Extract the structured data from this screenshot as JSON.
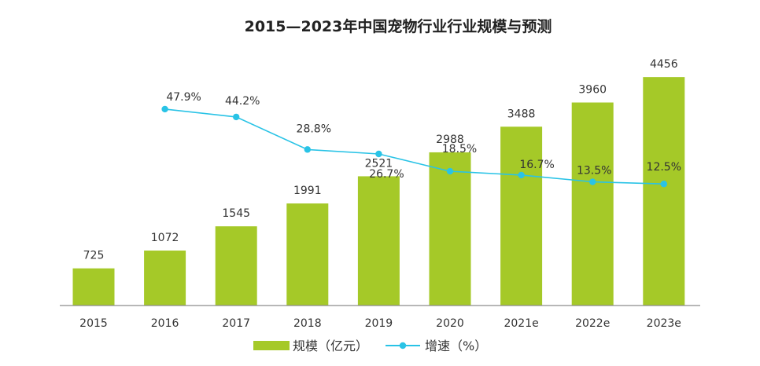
{
  "chart_data": {
    "type": "bar",
    "title": "2015—2023年中国宠物行业行业规模与预测",
    "categories": [
      "2015",
      "2016",
      "2017",
      "2018",
      "2019",
      "2020",
      "2021e",
      "2022e",
      "2023e"
    ],
    "series": [
      {
        "name": "规模（亿元）",
        "kind": "bar",
        "values": [
          725,
          1072,
          1545,
          1991,
          2521,
          2988,
          3488,
          3960,
          4456
        ],
        "labels": [
          "725",
          "1072",
          "1545",
          "1991",
          "2521",
          "2988",
          "3488",
          "3960",
          "4456"
        ],
        "color": "#a5c928"
      },
      {
        "name": "增速（%）",
        "kind": "line",
        "values": [
          null,
          47.9,
          44.2,
          28.8,
          26.7,
          18.5,
          16.7,
          13.5,
          12.5
        ],
        "labels": [
          "",
          "47.9%",
          "44.2%",
          "28.8%",
          "26.7%",
          "18.5%",
          "16.7%",
          "13.5%",
          "12.5%"
        ],
        "color": "#29c3e6"
      }
    ],
    "bar_axis_range": [
      0,
      4550
    ],
    "rate_axis_range": [
      -45,
      75
    ],
    "xlabel": "",
    "ylabel": "",
    "legend": [
      "规模（亿元）",
      "增速（%）"
    ],
    "legend_position": "bottom-center",
    "grid": false
  }
}
